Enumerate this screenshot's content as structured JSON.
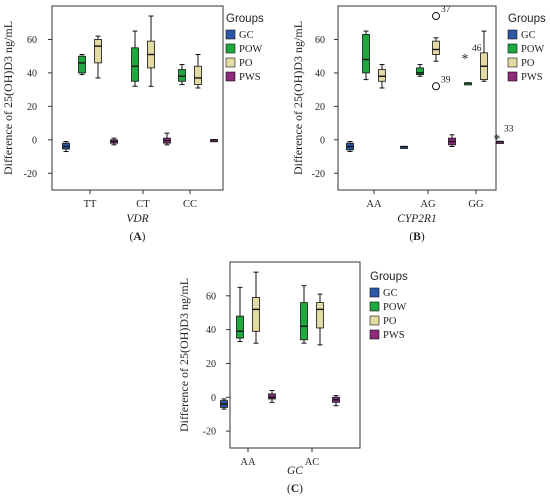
{
  "colors": {
    "GC": "#2c56a6",
    "POW": "#1fa83f",
    "PO": "#e4dba4",
    "PWS": "#8c2a7b",
    "axis": "#333333"
  },
  "legend": {
    "title": "Groups",
    "items": [
      {
        "key": "GC",
        "label": "GC"
      },
      {
        "key": "POW",
        "label": "POW"
      },
      {
        "key": "PO",
        "label": "PO"
      },
      {
        "key": "PWS",
        "label": "PWS"
      }
    ]
  },
  "chart_data": [
    {
      "type": "boxplot",
      "panel_label": "(A)",
      "xlabel": "VDR",
      "ylabel": "Difference of 25(OH)D3 ng/mL",
      "ylim": [
        -30,
        80
      ],
      "yticks": [
        -20,
        0,
        20,
        40,
        60
      ],
      "categories": [
        "TT",
        "CT",
        "CC"
      ],
      "series": [
        {
          "name": "GC",
          "boxes": [
            {
              "cat": "TT",
              "min": -7,
              "q1": -5.5,
              "median": -4,
              "q3": -2,
              "max": -1
            }
          ]
        },
        {
          "name": "POW",
          "boxes": [
            {
              "cat": "TT",
              "min": 39,
              "q1": 40,
              "median": 46,
              "q3": 50,
              "max": 51
            },
            {
              "cat": "CT",
              "min": 32,
              "q1": 35,
              "median": 44,
              "q3": 55,
              "max": 65
            },
            {
              "cat": "CC",
              "min": 33,
              "q1": 35,
              "median": 38,
              "q3": 42,
              "max": 45
            }
          ]
        },
        {
          "name": "PO",
          "boxes": [
            {
              "cat": "TT",
              "min": 37,
              "q1": 46,
              "median": 56,
              "q3": 60,
              "max": 62
            },
            {
              "cat": "CT",
              "min": 32,
              "q1": 43,
              "median": 51,
              "q3": 59,
              "max": 74
            },
            {
              "cat": "CC",
              "min": 31,
              "q1": 33,
              "median": 37,
              "q3": 44,
              "max": 51
            }
          ]
        },
        {
          "name": "PWS",
          "boxes": [
            {
              "cat": "TT",
              "min": -3,
              "q1": -2,
              "median": -1,
              "q3": 0,
              "max": 1
            },
            {
              "cat": "CT",
              "min": -3,
              "q1": -2,
              "median": -0.5,
              "q3": 1,
              "max": 4
            },
            {
              "cat": "CC",
              "min": 0,
              "q1": 0,
              "median": 0,
              "q3": 0,
              "max": 0
            }
          ]
        }
      ],
      "outliers": []
    },
    {
      "type": "boxplot",
      "panel_label": "(B)",
      "xlabel": "CYP2R1",
      "ylabel": "Difference of 25(OH)D3 ng/mL",
      "ylim": [
        -30,
        80
      ],
      "yticks": [
        -20,
        0,
        20,
        40,
        60
      ],
      "categories": [
        "AA",
        "AG",
        "GG"
      ],
      "series": [
        {
          "name": "GC",
          "boxes": [
            {
              "cat": "AA",
              "min": -7,
              "q1": -6,
              "median": -4,
              "q3": -2,
              "max": -1
            },
            {
              "cat": "AG",
              "min": -4,
              "q1": -4,
              "median": -4,
              "q3": -4,
              "max": -4
            }
          ]
        },
        {
          "name": "POW",
          "boxes": [
            {
              "cat": "AA",
              "min": 36,
              "q1": 40,
              "median": 48,
              "q3": 63,
              "max": 65
            },
            {
              "cat": "AG",
              "min": 38,
              "q1": 39,
              "median": 40,
              "q3": 43,
              "max": 45
            },
            {
              "cat": "GG",
              "min": 34,
              "q1": 34,
              "median": 34,
              "q3": 34,
              "max": 34
            }
          ]
        },
        {
          "name": "PO",
          "boxes": [
            {
              "cat": "AA",
              "min": 31,
              "q1": 35,
              "median": 38,
              "q3": 42,
              "max": 45
            },
            {
              "cat": "AG",
              "min": 47,
              "q1": 51,
              "median": 54,
              "q3": 59,
              "max": 61
            },
            {
              "cat": "GG",
              "min": 35,
              "q1": 36,
              "median": 44,
              "q3": 52,
              "max": 65
            }
          ]
        },
        {
          "name": "PWS",
          "boxes": [
            {
              "cat": "AG",
              "min": -4,
              "q1": -3,
              "median": -1,
              "q3": 1,
              "max": 3
            },
            {
              "cat": "GG",
              "min": -1,
              "q1": -1,
              "median": -1,
              "q3": -1,
              "max": -1
            }
          ]
        }
      ],
      "outliers": [
        {
          "cat": "AG",
          "series": "PO",
          "value": 74,
          "symbol": "circle",
          "label": "37"
        },
        {
          "cat": "AG",
          "series": "PO",
          "value": 32,
          "symbol": "circle",
          "label": "39"
        },
        {
          "cat": "GG",
          "series": "POW",
          "value": 50,
          "symbol": "star",
          "label": "46"
        },
        {
          "cat": "GG",
          "series": "PWS",
          "value": 2,
          "symbol": "star",
          "label": "33"
        }
      ]
    },
    {
      "type": "boxplot",
      "panel_label": "(C)",
      "xlabel": "GC",
      "ylabel": "Difference of 25(OH)D3 ng/mL",
      "ylim": [
        -30,
        80
      ],
      "yticks": [
        -20,
        0,
        20,
        40,
        60
      ],
      "categories": [
        "AA",
        "AC"
      ],
      "series": [
        {
          "name": "GC",
          "boxes": [
            {
              "cat": "AA",
              "min": -7,
              "q1": -6,
              "median": -4,
              "q3": -2,
              "max": -1
            }
          ]
        },
        {
          "name": "POW",
          "boxes": [
            {
              "cat": "AA",
              "min": 33,
              "q1": 35,
              "median": 39,
              "q3": 48,
              "max": 65
            },
            {
              "cat": "AC",
              "min": 32,
              "q1": 34,
              "median": 42,
              "q3": 56,
              "max": 66
            }
          ]
        },
        {
          "name": "PO",
          "boxes": [
            {
              "cat": "AA",
              "min": 32,
              "q1": 39,
              "median": 52,
              "q3": 59,
              "max": 74
            },
            {
              "cat": "AC",
              "min": 31,
              "q1": 41,
              "median": 52,
              "q3": 56,
              "max": 61
            }
          ]
        },
        {
          "name": "PWS",
          "boxes": [
            {
              "cat": "AA",
              "min": -3,
              "q1": -1,
              "median": 0,
              "q3": 2,
              "max": 4
            },
            {
              "cat": "AC",
              "min": -5,
              "q1": -3,
              "median": -1.5,
              "q3": 0,
              "max": 1
            }
          ]
        }
      ],
      "outliers": []
    }
  ]
}
